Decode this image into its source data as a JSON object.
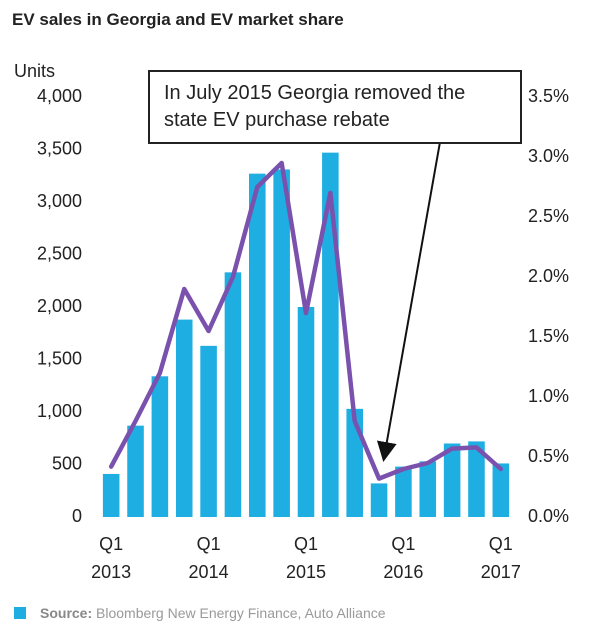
{
  "chart_data": {
    "type": "bar_line",
    "title": "EV sales in Georgia and EV market share",
    "y_label": "Units",
    "annotation": "In July 2015 Georgia removed the\nstate EV purchase rebate",
    "source_label": "Source:",
    "source": "Bloomberg New Energy Finance, Auto Alliance",
    "categories": [
      "Q1\n2013",
      null,
      null,
      null,
      "Q1\n2014",
      null,
      null,
      null,
      "Q1\n2015",
      null,
      null,
      null,
      "Q1\n2016",
      null,
      null,
      null,
      "Q1\n2017"
    ],
    "series": [
      {
        "type": "bar",
        "color": "#1eaee2",
        "values": [
          410,
          870,
          1340,
          1880,
          1630,
          2330,
          3270,
          3310,
          2000,
          3470,
          1030,
          320,
          480,
          530,
          700,
          720,
          510
        ]
      },
      {
        "type": "line",
        "axis": "y2",
        "color": "#7a52ad",
        "values": [
          0.42,
          0.8,
          1.2,
          1.9,
          1.55,
          2.0,
          2.75,
          2.95,
          1.7,
          2.7,
          0.8,
          0.32,
          0.4,
          0.45,
          0.57,
          0.58,
          0.4
        ]
      }
    ],
    "ylim": [
      0,
      4000
    ],
    "yticks": [
      0,
      500,
      {
        "value": 1000,
        "label": "1,000"
      },
      {
        "value": 1500,
        "label": "1,500"
      },
      {
        "value": 2000,
        "label": "2,000"
      },
      {
        "value": 2500,
        "label": "2,500"
      },
      {
        "value": 3000,
        "label": "3,000"
      },
      {
        "value": 3500,
        "label": "3,500"
      },
      {
        "value": 4000,
        "label": "4,000"
      }
    ],
    "y2lim": [
      0,
      3.5
    ],
    "y2ticks": [
      {
        "value": 0,
        "label": "0.0%"
      },
      {
        "value": 0.5,
        "label": "0.5%"
      },
      {
        "value": 1,
        "label": "1.0%"
      },
      {
        "value": 1.5,
        "label": "1.5%"
      },
      {
        "value": 2,
        "label": "2.0%"
      },
      {
        "value": 2.5,
        "label": "2.5%"
      },
      {
        "value": 3,
        "label": "3.0%"
      },
      {
        "value": 3.5,
        "label": "3.5%"
      }
    ],
    "grid": false
  }
}
